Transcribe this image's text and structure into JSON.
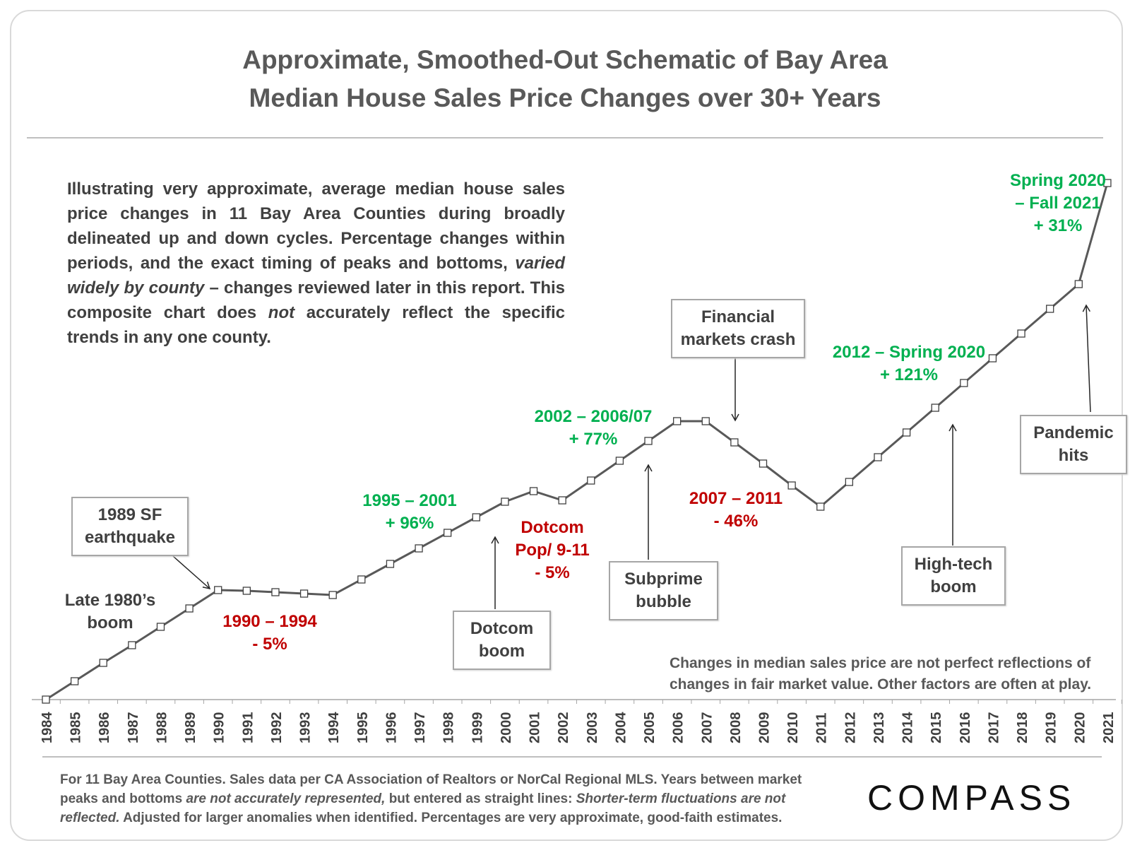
{
  "title": {
    "line1": "Approximate, Smoothed-Out Schematic of Bay Area",
    "line2": "Median House Sales Price Changes over 30+ Years"
  },
  "intro": {
    "part1": "Illustrating very approximate, average median house sales price changes in 11 Bay Area Counties during broadly delineated up and down cycles. Percentage changes within periods, and the exact timing of peaks and bottoms,",
    "italic1": "varied widely by county",
    "part2": "– changes reviewed later in this report. This composite chart does",
    "italic2": "not",
    "part3": "accurately reflect the specific trends in any one county."
  },
  "callouts": {
    "quake": [
      "1989 SF",
      "earthquake"
    ],
    "dotcom_boom": [
      "Dotcom",
      "boom"
    ],
    "subprime": [
      "Subprime",
      "bubble"
    ],
    "financial": [
      "Financial",
      "markets crash"
    ],
    "hightech": [
      "High-tech",
      "boom"
    ],
    "pandemic": [
      "Pandemic",
      "hits"
    ]
  },
  "period_labels": {
    "late80s": [
      "Late 1980’s",
      "boom"
    ],
    "p1990": [
      "1990 – 1994",
      "- 5%"
    ],
    "p1995": [
      "1995 – 2001",
      "+ 96%"
    ],
    "dotcom_pop": [
      "Dotcom",
      "Pop/ 9-11",
      "- 5%"
    ],
    "p2002": [
      "2002 – 2006/07",
      "+ 77%"
    ],
    "p2007": [
      "2007 – 2011",
      "- 46%"
    ],
    "p2012": [
      "2012 –  Spring 2020",
      "+ 121%"
    ],
    "p2020": [
      "Spring 2020",
      "– Fall 2021",
      "+ 31%"
    ]
  },
  "note": "Changes in median sales price are not perfect reflections of changes in fair market value. Other factors are often at play.",
  "footer": {
    "part1": "For 11 Bay Area Counties. Sales data per CA Association of Realtors or NorCal Regional MLS. Years between market peaks and bottoms",
    "italic1": "are not accurately represented,",
    "part2": "but entered as straight lines:",
    "italic2": "Shorter-term fluctuations are not reflected.",
    "part3": "Adjusted for larger anomalies when identified. Percentages are very approximate, good-faith estimates."
  },
  "logo": "COMPASS",
  "colors": {
    "up": "#00b050",
    "down": "#c00000",
    "line": "#595959",
    "text": "#404040"
  },
  "chart_data": {
    "type": "line",
    "title": "Approximate, Smoothed-Out Schematic of Bay Area Median House Sales Price Changes over 30+ Years",
    "xlabel": "",
    "ylabel": "",
    "y_axis_shown": false,
    "grid": false,
    "x": [
      "1984",
      "1985",
      "1986",
      "1987",
      "1988",
      "1989",
      "1990",
      "1991",
      "1992",
      "1993",
      "1994",
      "1995",
      "1996",
      "1997",
      "1998",
      "1999",
      "2000",
      "2001",
      "2002",
      "2003",
      "2004",
      "2005",
      "2006",
      "2007",
      "2008",
      "2009",
      "2010",
      "2011",
      "2012",
      "2013",
      "2014",
      "2015",
      "2016",
      "2017",
      "2018",
      "2019",
      "2020",
      "2021"
    ],
    "series": [
      {
        "name": "",
        "values": [
          0,
          2.6,
          5.2,
          7.7,
          10.3,
          12.9,
          15.5,
          15.4,
          15.2,
          15.0,
          14.8,
          17.0,
          19.2,
          21.4,
          23.6,
          25.8,
          28.0,
          29.5,
          28.2,
          31.0,
          33.8,
          36.6,
          39.4,
          39.4,
          36.4,
          33.4,
          30.3,
          27.3,
          30.8,
          34.3,
          37.8,
          41.3,
          44.8,
          48.3,
          51.8,
          55.3,
          58.8,
          73.1
        ]
      }
    ]
  }
}
